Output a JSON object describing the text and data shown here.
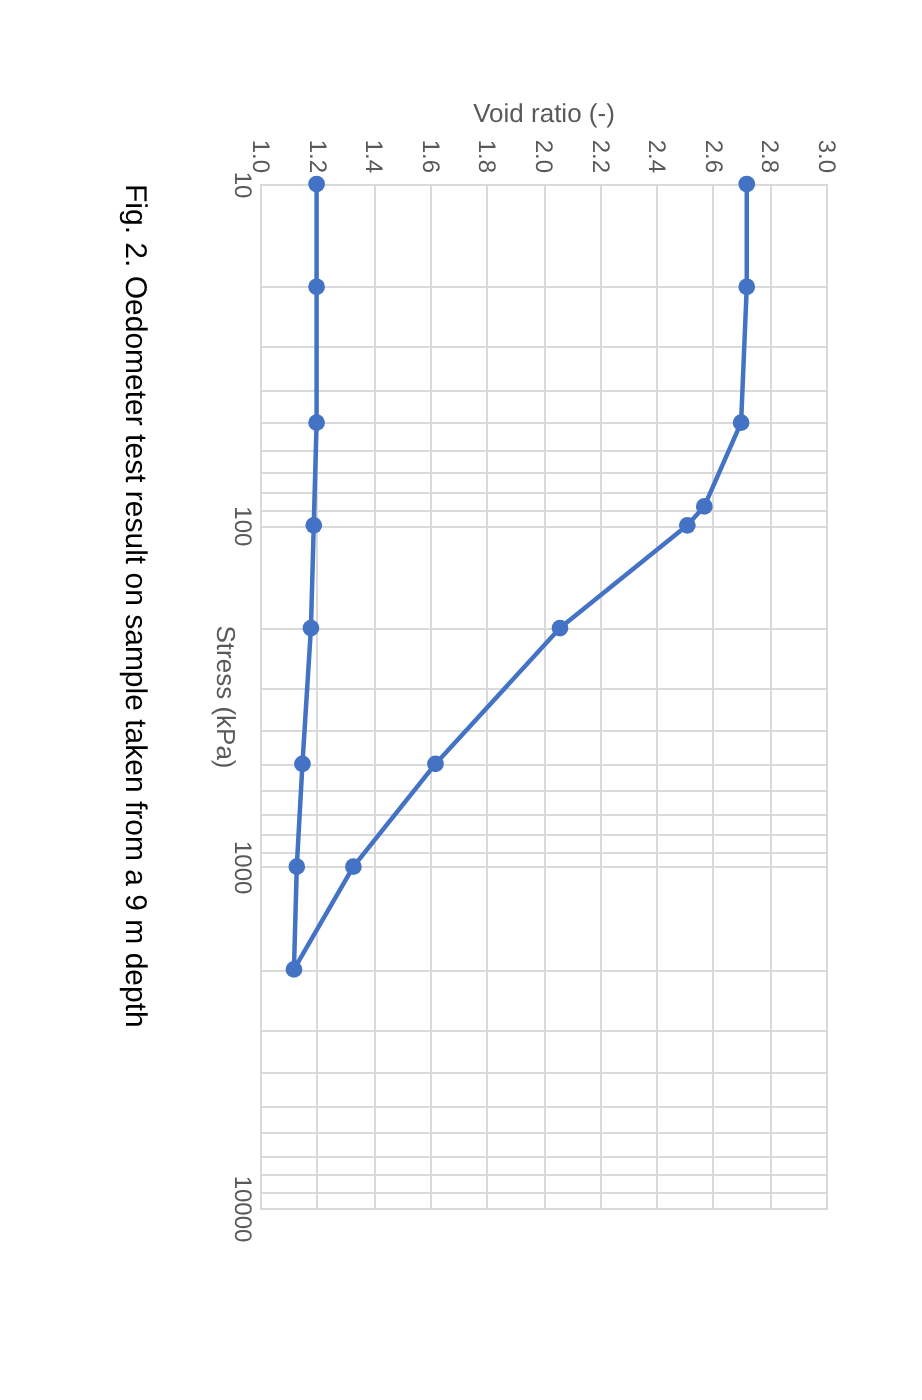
{
  "chart_data": {
    "type": "line",
    "xlabel": "Void ratio (-)",
    "ylabel": "Stress (kPa)",
    "annotations": [
      "Fig. 2. Oedometer test result on sample taken from a 9 m depth"
    ],
    "series": [
      {
        "color": "#4472c4",
        "x": [
          2.72,
          2.72,
          2.7,
          2.57,
          2.51,
          2.06,
          1.62,
          1.33,
          1.12,
          1.13,
          1.15,
          1.18,
          1.19,
          1.2,
          1.2,
          1.2
        ],
        "values": [
          10,
          20,
          50,
          88,
          100,
          200,
          500,
          1000,
          2000,
          1000,
          500,
          200,
          100,
          50,
          20,
          10
        ]
      }
    ],
    "log": "y",
    "ylim": [
      10000,
      10
    ],
    "yticks": [
      10,
      100,
      1000,
      10000
    ],
    "xlim": [
      1.0,
      3.0
    ],
    "xticks": [
      {
        "value": 1.0,
        "label": "1.0"
      },
      {
        "value": 1.2,
        "label": "1.2"
      },
      {
        "value": 1.4,
        "label": "1.4"
      },
      {
        "value": 1.6,
        "label": "1.6"
      },
      {
        "value": 1.8,
        "label": "1.8"
      },
      {
        "value": 2.0,
        "label": "2.0"
      },
      {
        "value": 2.2,
        "label": "2.2"
      },
      {
        "value": 2.4,
        "label": "2.4"
      },
      {
        "value": 2.6,
        "label": "2.6"
      },
      {
        "value": 2.8,
        "label": "2.8"
      },
      {
        "value": 3.0,
        "label": "3.0"
      }
    ],
    "grid": true,
    "marker": "circle",
    "line_style": "solid"
  }
}
